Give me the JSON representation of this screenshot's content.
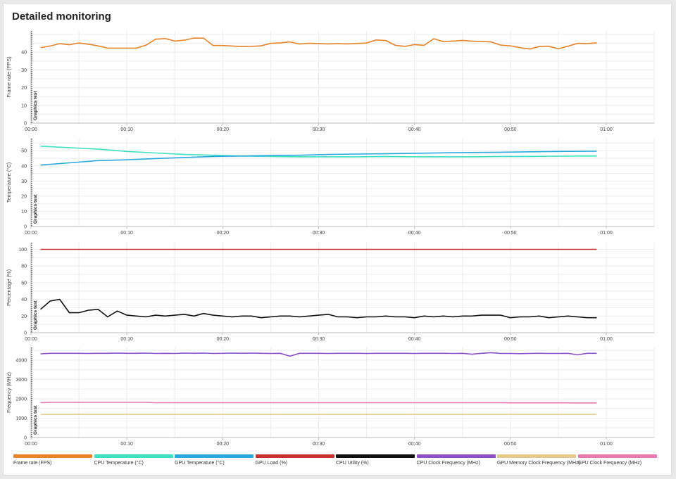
{
  "title": "Detailed monitoring",
  "marker_label": "Graphics test",
  "x_ticks": [
    "00:00",
    "00:10",
    "00:20",
    "00:30",
    "00:40",
    "00:50",
    "01:00"
  ],
  "colors": {
    "grid": "#ececec",
    "axis": "#bbbbbb",
    "tick_text": "#444444",
    "marker": "#222222"
  },
  "legend": [
    {
      "label": "Frame rate (FPS)",
      "color": "#e8832a"
    },
    {
      "label": "CPU Temperature (°C)",
      "color": "#3de0c0"
    },
    {
      "label": "GPU Temperature (°C)",
      "color": "#2aa9e0"
    },
    {
      "label": "GPU Load (%)",
      "color": "#c83232"
    },
    {
      "label": "CPU Utility (%)",
      "color": "#111111"
    },
    {
      "label": "CPU Clock Frequency (MHz)",
      "color": "#8c4fc7"
    },
    {
      "label": "GPU Memory Clock Frequency (MHz)",
      "color": "#e6c98a"
    },
    {
      "label": "GPU Clock Frequency (MHz)",
      "color": "#e87ab0"
    }
  ],
  "chart_data": [
    {
      "type": "line",
      "ylabel": "Frame rate (FPS)",
      "xlabel": "",
      "xlim": [
        0,
        65
      ],
      "ylim": [
        0,
        52
      ],
      "yticks": [
        0,
        10,
        20,
        30,
        40
      ],
      "x": [
        1,
        2,
        3,
        4,
        5,
        6,
        7,
        8,
        9,
        10,
        11,
        12,
        13,
        14,
        15,
        16,
        17,
        18,
        19,
        20,
        21,
        22,
        23,
        24,
        25,
        26,
        27,
        28,
        29,
        30,
        31,
        32,
        33,
        34,
        35,
        36,
        37,
        38,
        39,
        40,
        41,
        42,
        43,
        44,
        45,
        46,
        47,
        48,
        49,
        50,
        51,
        52,
        53,
        54,
        55,
        56,
        57,
        58,
        59
      ],
      "series": [
        {
          "name": "Frame rate (FPS)",
          "color": "#e8832a",
          "values": [
            42.5,
            43.5,
            44.8,
            44.2,
            45.2,
            44.5,
            43.6,
            42.3,
            42.3,
            42.3,
            42.3,
            44,
            47.3,
            47.7,
            46.3,
            46.8,
            48,
            47.9,
            43.8,
            43.8,
            43.5,
            43.2,
            43.3,
            43.6,
            45,
            45.3,
            45.8,
            44.6,
            45,
            44.8,
            44.7,
            44.8,
            44.7,
            44.9,
            45.2,
            46.9,
            46.6,
            43.9,
            43.3,
            44.3,
            43.9,
            47.6,
            46,
            46.3,
            46.7,
            46.2,
            46.1,
            45.8,
            44,
            43.6,
            42.6,
            41.8,
            43.2,
            43.4,
            41.9,
            43.4,
            45,
            44.8,
            45.3
          ]
        }
      ]
    },
    {
      "type": "line",
      "ylabel": "Temperature (°C)",
      "xlabel": "",
      "xlim": [
        0,
        65
      ],
      "ylim": [
        0,
        58
      ],
      "yticks": [
        0,
        10,
        20,
        30,
        40,
        50
      ],
      "x": [
        1,
        4,
        7,
        10,
        13,
        16,
        19,
        22,
        25,
        28,
        31,
        34,
        37,
        40,
        43,
        46,
        49,
        52,
        55,
        59
      ],
      "series": [
        {
          "name": "CPU Temperature (°C)",
          "color": "#3de0c0",
          "values": [
            53,
            52,
            51,
            49.5,
            48.5,
            47.5,
            47,
            46.5,
            46.2,
            46,
            46,
            46,
            46.2,
            46,
            46,
            46,
            46.2,
            46.2,
            46.4,
            46.5
          ]
        },
        {
          "name": "GPU Temperature (°C)",
          "color": "#2aa9e0",
          "values": [
            40.5,
            42,
            43.5,
            44,
            44.8,
            45.5,
            46.2,
            46.5,
            46.8,
            47,
            47.5,
            47.8,
            48,
            48.3,
            48.6,
            48.8,
            49,
            49.3,
            49.5,
            49.7
          ]
        }
      ]
    },
    {
      "type": "line",
      "ylabel": "Percentage (%)",
      "xlabel": "",
      "xlim": [
        0,
        65
      ],
      "ylim": [
        0,
        108
      ],
      "yticks": [
        0,
        20,
        40,
        60,
        80,
        100
      ],
      "x": [
        1,
        2,
        3,
        4,
        5,
        6,
        7,
        8,
        9,
        10,
        11,
        12,
        13,
        14,
        15,
        16,
        17,
        18,
        19,
        20,
        21,
        22,
        23,
        24,
        25,
        26,
        27,
        28,
        29,
        30,
        31,
        32,
        33,
        34,
        35,
        36,
        37,
        38,
        39,
        40,
        41,
        42,
        43,
        44,
        45,
        46,
        47,
        48,
        49,
        50,
        51,
        52,
        53,
        54,
        55,
        56,
        57,
        58,
        59
      ],
      "series": [
        {
          "name": "GPU Load (%)",
          "color": "#c83232",
          "values": [
            100,
            100,
            100,
            100,
            100,
            100,
            100,
            100,
            100,
            100,
            100,
            100,
            100,
            100,
            100,
            100,
            100,
            100,
            100,
            100,
            100,
            100,
            100,
            100,
            100,
            100,
            100,
            100,
            100,
            100,
            100,
            100,
            100,
            100,
            100,
            100,
            100,
            100,
            100,
            100,
            100,
            100,
            100,
            100,
            100,
            100,
            100,
            100,
            100,
            100,
            100,
            100,
            100,
            100,
            100,
            100,
            100,
            100,
            100
          ]
        },
        {
          "name": "CPU Utility (%)",
          "color": "#111111",
          "values": [
            28,
            38,
            40,
            24,
            24,
            27,
            28,
            19,
            26,
            21,
            20,
            19,
            21,
            20,
            21,
            22,
            20,
            23,
            21,
            20,
            19,
            20,
            20,
            18,
            19,
            20,
            20,
            19,
            20,
            21,
            22,
            19,
            19,
            18,
            19,
            19,
            20,
            19,
            19,
            18,
            20,
            19,
            20,
            19,
            20,
            20,
            21,
            21,
            21,
            18,
            19,
            19,
            20,
            18,
            19,
            20,
            19,
            18,
            18
          ]
        }
      ]
    },
    {
      "type": "line",
      "ylabel": "Frequency (MHz)",
      "xlabel": "",
      "xlim": [
        0,
        65
      ],
      "ylim": [
        0,
        4650
      ],
      "yticks": [
        0,
        1000,
        2000,
        3000,
        4000
      ],
      "x": [
        1,
        2,
        3,
        4,
        5,
        6,
        7,
        8,
        9,
        10,
        11,
        12,
        13,
        14,
        15,
        16,
        17,
        18,
        19,
        20,
        21,
        22,
        23,
        24,
        25,
        26,
        27,
        28,
        29,
        30,
        31,
        32,
        33,
        34,
        35,
        36,
        37,
        38,
        39,
        40,
        41,
        42,
        43,
        44,
        45,
        46,
        47,
        48,
        49,
        50,
        51,
        52,
        53,
        54,
        55,
        56,
        57,
        58,
        59
      ],
      "series": [
        {
          "name": "CPU Clock Frequency (MHz)",
          "color": "#8c4fc7",
          "values": [
            4320,
            4350,
            4350,
            4350,
            4350,
            4340,
            4350,
            4350,
            4360,
            4350,
            4350,
            4360,
            4340,
            4350,
            4340,
            4360,
            4350,
            4360,
            4340,
            4350,
            4360,
            4350,
            4360,
            4350,
            4340,
            4350,
            4200,
            4350,
            4350,
            4350,
            4340,
            4350,
            4350,
            4350,
            4340,
            4350,
            4350,
            4350,
            4350,
            4340,
            4350,
            4350,
            4350,
            4340,
            4350,
            4300,
            4350,
            4380,
            4340,
            4340,
            4330,
            4340,
            4350,
            4340,
            4340,
            4350,
            4270,
            4350,
            4350
          ]
        },
        {
          "name": "GPU Memory Clock Frequency (MHz)",
          "color": "#e6c98a",
          "values": [
            1200,
            1200,
            1200,
            1200,
            1200,
            1200,
            1200,
            1200,
            1200,
            1200,
            1200,
            1200,
            1200,
            1200,
            1200,
            1200,
            1200,
            1200,
            1200,
            1200,
            1200,
            1200,
            1200,
            1200,
            1200,
            1200,
            1200,
            1200,
            1200,
            1200,
            1200,
            1200,
            1200,
            1200,
            1200,
            1200,
            1200,
            1200,
            1200,
            1200,
            1200,
            1200,
            1200,
            1200,
            1200,
            1200,
            1200,
            1200,
            1200,
            1200,
            1200,
            1200,
            1200,
            1200,
            1200,
            1200,
            1200,
            1200,
            1200
          ]
        },
        {
          "name": "GPU Clock Frequency (MHz)",
          "color": "#e87ab0",
          "values": [
            1800,
            1815,
            1815,
            1815,
            1815,
            1815,
            1815,
            1815,
            1815,
            1815,
            1815,
            1815,
            1800,
            1800,
            1800,
            1800,
            1800,
            1800,
            1800,
            1800,
            1800,
            1800,
            1800,
            1800,
            1800,
            1800,
            1800,
            1800,
            1800,
            1800,
            1800,
            1800,
            1800,
            1800,
            1800,
            1800,
            1800,
            1800,
            1800,
            1800,
            1800,
            1800,
            1800,
            1800,
            1800,
            1800,
            1800,
            1800,
            1800,
            1790,
            1790,
            1790,
            1790,
            1790,
            1790,
            1790,
            1785,
            1785,
            1785
          ]
        }
      ]
    }
  ]
}
